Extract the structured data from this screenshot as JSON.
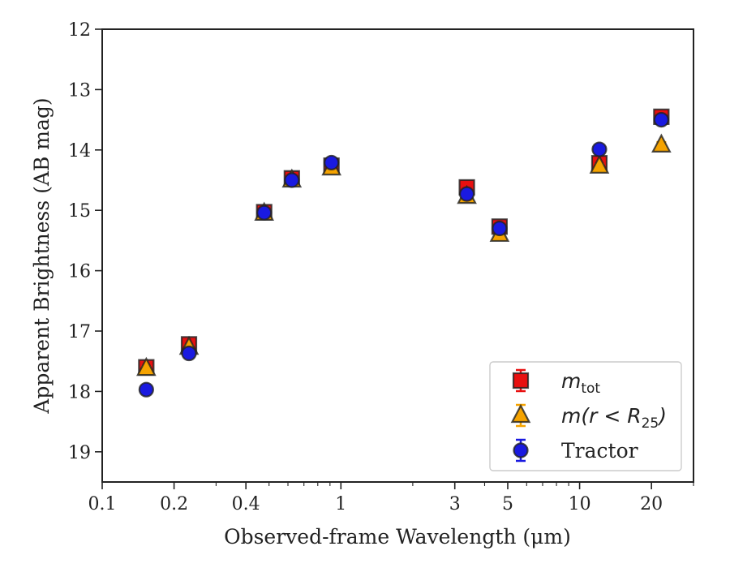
{
  "chart_data": {
    "type": "scatter",
    "xlabel": "Observed-frame Wavelength (μm)",
    "ylabel": "Apparent Brightness (AB mag)",
    "xscale": "log",
    "xlim": [
      0.1,
      30
    ],
    "ylim": [
      19.5,
      12
    ],
    "y_inverted": true,
    "xticks": [
      0.1,
      0.2,
      0.4,
      1,
      3,
      5,
      10,
      20
    ],
    "xtick_labels": [
      "0.1",
      "0.2",
      "0.4",
      "1",
      "3",
      "5",
      "10",
      "20"
    ],
    "yticks": [
      12,
      13,
      14,
      15,
      16,
      17,
      18,
      19
    ],
    "ytick_labels": [
      "12",
      "13",
      "14",
      "15",
      "16",
      "17",
      "18",
      "19"
    ],
    "grid": false,
    "legend_position": "lower-right",
    "colors": {
      "m_tot": "#e81010",
      "m_r25": "#f5a300",
      "tractor": "#1a1ae0",
      "edge": "#222222"
    },
    "series": [
      {
        "name": "m_tot",
        "legend_label": {
          "main": "m",
          "sub": "tot"
        },
        "marker": "square",
        "x": [
          0.153,
          0.231,
          0.477,
          0.623,
          0.913,
          3.37,
          4.62,
          12.1,
          22.0
        ],
        "y": [
          17.6,
          17.22,
          15.03,
          14.47,
          14.26,
          14.62,
          15.27,
          14.22,
          13.45
        ],
        "yerr": [
          0.03,
          0.03,
          0.02,
          0.02,
          0.02,
          0.03,
          0.03,
          0.03,
          0.04
        ]
      },
      {
        "name": "m(r<R25)",
        "legend_label": {
          "main": "m",
          "paren": "(r < R",
          "sub": "25",
          "close": ")"
        },
        "marker": "triangle",
        "x": [
          0.153,
          0.231,
          0.477,
          0.623,
          0.913,
          3.37,
          4.62,
          12.1,
          22.0
        ],
        "y": [
          17.62,
          17.27,
          15.05,
          14.5,
          14.3,
          14.77,
          15.4,
          14.27,
          13.92
        ],
        "yerr": [
          0.03,
          0.03,
          0.02,
          0.02,
          0.02,
          0.03,
          0.03,
          0.03,
          0.05
        ]
      },
      {
        "name": "Tractor",
        "legend_label": {
          "main": "Tractor"
        },
        "marker": "circle",
        "x": [
          0.153,
          0.231,
          0.477,
          0.623,
          0.913,
          3.37,
          4.62,
          12.1,
          22.0
        ],
        "y": [
          17.97,
          17.37,
          15.04,
          14.5,
          14.21,
          14.73,
          15.3,
          13.99,
          13.5
        ],
        "yerr": [
          0.06,
          0.04,
          0.02,
          0.02,
          0.02,
          0.03,
          0.03,
          0.06,
          0.05
        ]
      }
    ]
  }
}
